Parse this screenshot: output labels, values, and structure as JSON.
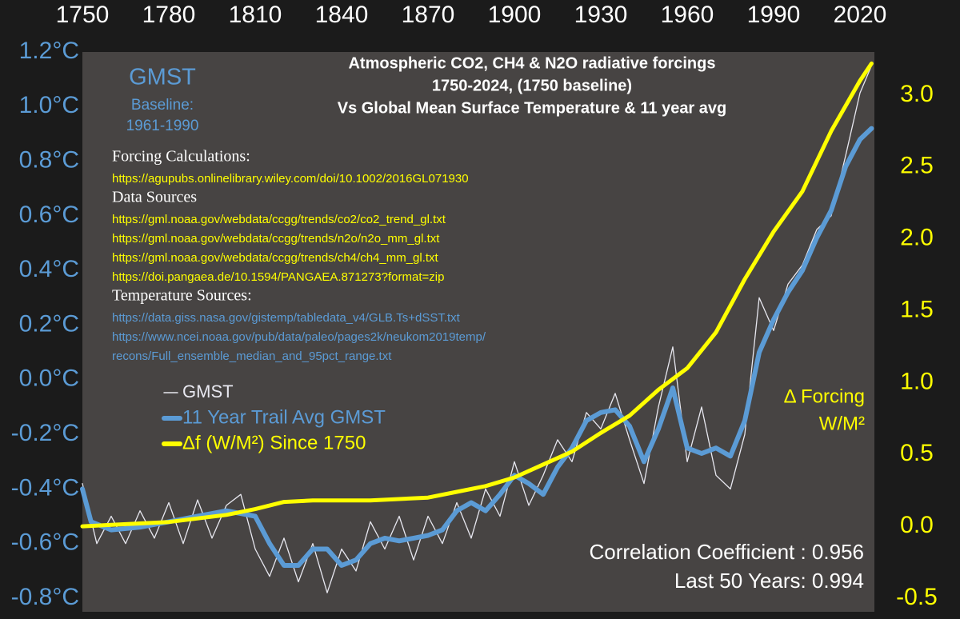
{
  "chart_data": {
    "type": "line",
    "title": [
      "Atmospheric CO2, CH4 & N2O radiative forcings",
      "1750-2024,  (1750 baseline)",
      "Vs Global Mean Surface Temperature & 11 year avg"
    ],
    "subtitle": [
      "GMST",
      "Baseline:",
      "1961-1990"
    ],
    "sources": [
      {
        "heading": "Forcing Calculations:",
        "links": [
          "https://agupubs.onlinelibrary.wiley.com/doi/10.1002/2016GL071930"
        ],
        "color": "#ffff00"
      },
      {
        "heading": "Data Sources",
        "links": [
          "https://gml.noaa.gov/webdata/ccgg/trends/co2/co2_trend_gl.txt",
          "https://gml.noaa.gov/webdata/ccgg/trends/n2o/n2o_mm_gl.txt",
          "https://gml.noaa.gov/webdata/ccgg/trends/ch4/ch4_mm_gl.txt",
          "https://doi.pangaea.de/10.1594/PANGAEA.871273?format=zip"
        ],
        "color": "#ffff00"
      },
      {
        "heading": "Temperature Sources:",
        "links": [
          "https://data.giss.nasa.gov/gistemp/tabledata_v4/GLB.Ts+dSST.txt",
          "https://www.ncei.noaa.gov/pub/data/paleo/pages2k/neukom2019temp/",
          "recons/Full_ensemble_median_and_95pct_range.txt"
        ],
        "color": "#5b9bd5"
      }
    ],
    "y2_label": [
      "Δ Forcing",
      "W/M²"
    ],
    "annotations": [
      "Correlation Coefficient : 0.956",
      "Last 50 Years: 0.994"
    ],
    "xlim": [
      1750,
      2025
    ],
    "xticks": [
      1750,
      1780,
      1810,
      1840,
      1870,
      1900,
      1930,
      1960,
      1990,
      2020
    ],
    "ylim": [
      -0.8,
      1.2
    ],
    "yticks": [
      {
        "value": -0.8,
        "label": "-0.8°C"
      },
      {
        "value": -0.6,
        "label": "-0.6°C"
      },
      {
        "value": -0.4,
        "label": "-0.4°C"
      },
      {
        "value": -0.2,
        "label": "-0.2°C"
      },
      {
        "value": 0,
        "label": "0.0°C"
      },
      {
        "value": 0.2,
        "label": "0.2°C"
      },
      {
        "value": 0.4,
        "label": "0.4°C"
      },
      {
        "value": 0.6,
        "label": "0.6°C"
      },
      {
        "value": 0.8,
        "label": "0.8°C"
      },
      {
        "value": 1,
        "label": "1.0°C"
      },
      {
        "value": 1.2,
        "label": "1.2°C"
      }
    ],
    "y2lim": [
      -0.5,
      3.3
    ],
    "y2ticks": [
      -0.5,
      {
        "value": 0,
        "label": "0.0"
      },
      0.5,
      {
        "value": 1,
        "label": "1.0"
      },
      1.5,
      {
        "value": 2,
        "label": "2.0"
      },
      2.5,
      {
        "value": 3,
        "label": "3.0"
      }
    ],
    "series": [
      {
        "name": "GMST",
        "color": "#e8e8f0",
        "width": 1.3,
        "x": [
          1750,
          1755,
          1760,
          1765,
          1770,
          1775,
          1780,
          1785,
          1790,
          1795,
          1800,
          1805,
          1810,
          1815,
          1820,
          1825,
          1830,
          1835,
          1840,
          1845,
          1850,
          1855,
          1860,
          1865,
          1870,
          1875,
          1880,
          1885,
          1890,
          1895,
          1900,
          1905,
          1910,
          1915,
          1920,
          1925,
          1930,
          1935,
          1940,
          1945,
          1950,
          1955,
          1960,
          1965,
          1970,
          1975,
          1980,
          1985,
          1990,
          1995,
          2000,
          2005,
          2010,
          2015,
          2020,
          2024
        ],
        "values": [
          -0.38,
          -0.6,
          -0.5,
          -0.6,
          -0.48,
          -0.58,
          -0.45,
          -0.6,
          -0.44,
          -0.58,
          -0.46,
          -0.42,
          -0.62,
          -0.72,
          -0.58,
          -0.74,
          -0.6,
          -0.78,
          -0.62,
          -0.7,
          -0.52,
          -0.62,
          -0.5,
          -0.66,
          -0.5,
          -0.6,
          -0.45,
          -0.58,
          -0.4,
          -0.5,
          -0.3,
          -0.46,
          -0.35,
          -0.22,
          -0.3,
          -0.12,
          -0.18,
          -0.05,
          -0.22,
          -0.38,
          -0.1,
          0.12,
          -0.3,
          -0.1,
          -0.35,
          -0.4,
          -0.2,
          0.3,
          0.18,
          0.35,
          0.42,
          0.55,
          0.6,
          0.82,
          1.05,
          1.15
        ]
      },
      {
        "name": "11 Year Trail Avg GMST",
        "color": "#5b9bd5",
        "width": 6,
        "x": [
          1750,
          1753,
          1760,
          1770,
          1780,
          1790,
          1800,
          1810,
          1815,
          1820,
          1825,
          1830,
          1835,
          1840,
          1845,
          1850,
          1855,
          1860,
          1865,
          1870,
          1875,
          1880,
          1885,
          1890,
          1895,
          1900,
          1905,
          1910,
          1915,
          1920,
          1925,
          1930,
          1935,
          1940,
          1945,
          1950,
          1955,
          1960,
          1965,
          1970,
          1975,
          1980,
          1985,
          1990,
          1995,
          2000,
          2005,
          2010,
          2015,
          2020,
          2024
        ],
        "values": [
          -0.4,
          -0.52,
          -0.55,
          -0.54,
          -0.52,
          -0.5,
          -0.48,
          -0.5,
          -0.6,
          -0.68,
          -0.68,
          -0.62,
          -0.62,
          -0.68,
          -0.66,
          -0.6,
          -0.58,
          -0.59,
          -0.58,
          -0.57,
          -0.55,
          -0.48,
          -0.45,
          -0.48,
          -0.42,
          -0.35,
          -0.38,
          -0.42,
          -0.32,
          -0.25,
          -0.15,
          -0.12,
          -0.11,
          -0.17,
          -0.3,
          -0.18,
          -0.03,
          -0.25,
          -0.27,
          -0.25,
          -0.28,
          -0.15,
          0.1,
          0.22,
          0.32,
          0.4,
          0.52,
          0.62,
          0.78,
          0.88,
          0.92
        ]
      },
      {
        "name": "Δf (W/M²) Since 1750",
        "color": "#ffff00",
        "width": 5,
        "axis": "y2",
        "x": [
          1750,
          1780,
          1800,
          1810,
          1820,
          1830,
          1850,
          1870,
          1880,
          1890,
          1900,
          1910,
          1920,
          1930,
          1940,
          1950,
          1960,
          1970,
          1980,
          1990,
          2000,
          2010,
          2020,
          2024
        ],
        "values": [
          0,
          0.03,
          0.08,
          0.12,
          0.17,
          0.18,
          0.18,
          0.2,
          0.24,
          0.28,
          0.34,
          0.43,
          0.52,
          0.65,
          0.77,
          0.95,
          1.1,
          1.35,
          1.72,
          2.05,
          2.33,
          2.75,
          3.1,
          3.22
        ]
      }
    ]
  }
}
